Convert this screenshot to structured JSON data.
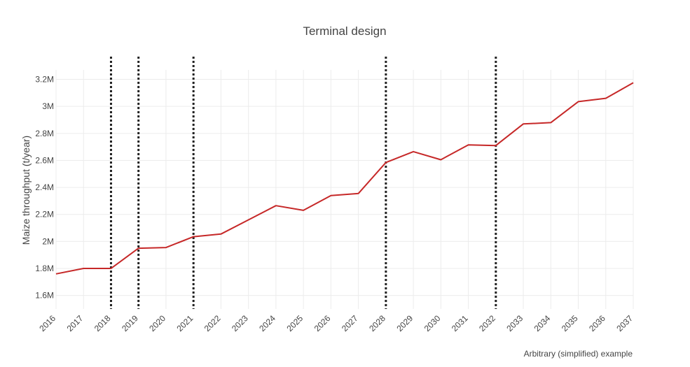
{
  "chart_data": {
    "type": "line",
    "title": "Terminal design",
    "xlabel": "",
    "ylabel": "Maize throughput (t/year)",
    "annotation": "Arbitrary (simplified) example",
    "x": [
      2016,
      2017,
      2018,
      2019,
      2020,
      2021,
      2022,
      2023,
      2024,
      2025,
      2026,
      2027,
      2028,
      2029,
      2030,
      2031,
      2032,
      2033,
      2034,
      2035,
      2036,
      2037
    ],
    "xlim": [
      2016,
      2037
    ],
    "ylim": [
      1500000,
      3270000
    ],
    "yticks": [
      1600000,
      1800000,
      2000000,
      2200000,
      2400000,
      2600000,
      2800000,
      3000000,
      3200000
    ],
    "ytick_labels": [
      "1.6M",
      "1.8M",
      "2M",
      "2.2M",
      "2.4M",
      "2.6M",
      "2.8M",
      "3M",
      "3.2M"
    ],
    "grid": true,
    "series": [
      {
        "values": [
          1760000,
          1800000,
          1800000,
          1950000,
          1955000,
          2035000,
          2055000,
          2160000,
          2265000,
          2230000,
          2340000,
          2355000,
          2585000,
          2665000,
          2605000,
          2715000,
          2710000,
          2870000,
          2880000,
          3035000,
          3060000,
          3175000
        ],
        "color": "#c62828"
      }
    ],
    "vlines": {
      "x": [
        2018,
        2019,
        2021,
        2028,
        2032
      ],
      "color": "#222222",
      "style": "dotted"
    }
  }
}
